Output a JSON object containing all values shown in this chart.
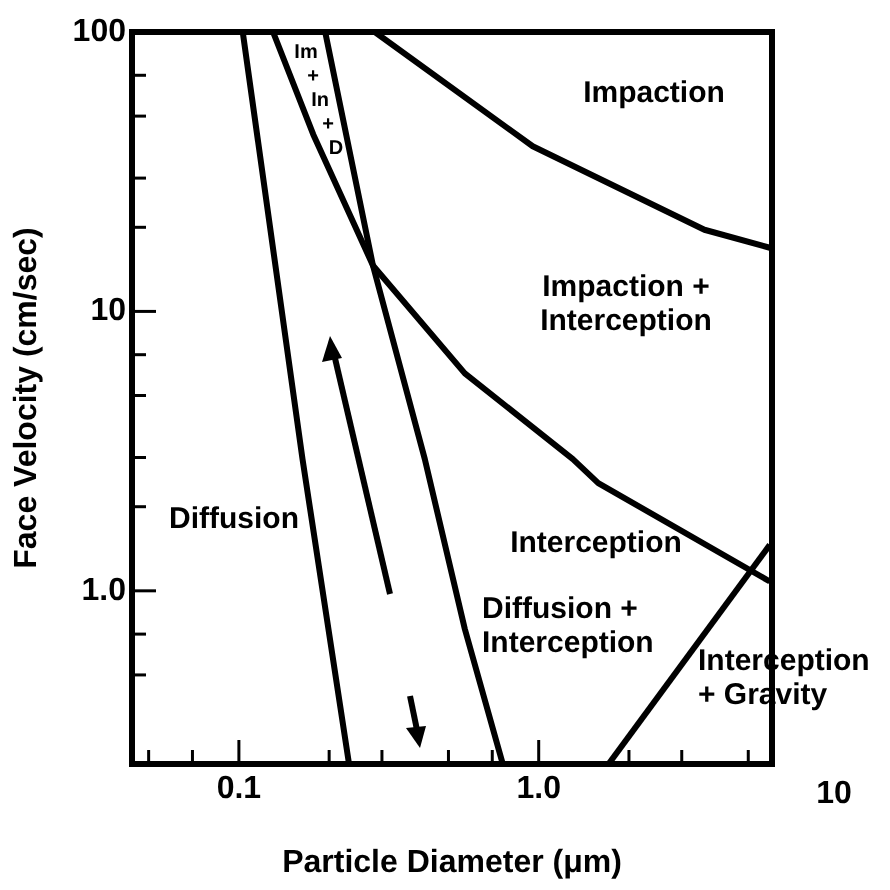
{
  "chart_data": {
    "type": "line",
    "xlabel": "Particle Diameter (μm)",
    "ylabel": "Face Velocity (cm/sec)",
    "log": "xy",
    "xlim": [
      0.044,
      6
    ],
    "ylim": [
      0.24,
      100
    ],
    "xticks": [
      {
        "value": 0.05,
        "label": null
      },
      {
        "value": 0.07,
        "label": null
      },
      0.1,
      {
        "value": 0.2,
        "label": null
      },
      {
        "value": 0.3,
        "label": null
      },
      {
        "value": 0.5,
        "label": null
      },
      {
        "value": 0.7,
        "label": null
      },
      {
        "value": 1,
        "label": "1.0"
      },
      {
        "value": 2,
        "label": null
      },
      {
        "value": 3,
        "label": null
      },
      {
        "value": 5,
        "label": null
      }
    ],
    "yticks": [
      {
        "value": 0.5,
        "label": null
      },
      {
        "value": 0.7,
        "label": null
      },
      {
        "value": 1,
        "label": "1.0"
      },
      {
        "value": 2,
        "label": null
      },
      {
        "value": 3,
        "label": null
      },
      {
        "value": 5,
        "label": null
      },
      {
        "value": 7,
        "label": null
      },
      10,
      {
        "value": 20,
        "label": null
      },
      {
        "value": 30,
        "label": null
      },
      {
        "value": 50,
        "label": null
      },
      {
        "value": 70,
        "label": null
      },
      100
    ],
    "grid": false,
    "legend": false,
    "marker": "none",
    "line_style": "solid",
    "series": [
      {
        "color": "#000000",
        "x": [
          0.103,
          0.163,
          0.233
        ],
        "values": [
          100,
          2.96,
          0.24
        ]
      },
      {
        "color": "#000000",
        "x": [
          0.194,
          0.28,
          0.417,
          0.567,
          0.759
        ],
        "values": [
          100,
          14.6,
          2.96,
          0.73,
          0.24
        ]
      },
      {
        "color": "#000000",
        "x": [
          0.13,
          0.177,
          0.28,
          0.567,
          1.3,
          1.58,
          5.9
        ],
        "values": [
          100,
          43,
          14.6,
          6.0,
          2.96,
          2.43,
          1.08
        ]
      },
      {
        "color": "#000000",
        "x": [
          0.284,
          0.955,
          3.57,
          5.9
        ],
        "values": [
          100,
          39,
          19.6,
          16.9
        ]
      },
      {
        "color": "#000000",
        "x": [
          1.71,
          5.9
        ],
        "values": [
          0.24,
          1.46
        ]
      }
    ],
    "annotations": [
      "Impaction",
      "Impaction +\nInterception",
      "Diffusion",
      "Interception",
      "Diffusion +\nInterception",
      "Interception\n+ Gravity",
      "Im\n+\nIn\n+\nD",
      "10"
    ]
  }
}
